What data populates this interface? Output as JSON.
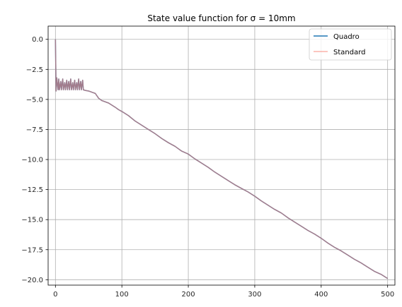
{
  "chart_data": {
    "type": "line",
    "title": "State value function for σ = 10mm",
    "xlabel": "",
    "ylabel": "",
    "xlim": [
      -11,
      511
    ],
    "ylim": [
      -20.45,
      1.1
    ],
    "xticks": [
      0,
      100,
      200,
      300,
      400,
      500
    ],
    "xtick_labels": [
      "0",
      "100",
      "200",
      "300",
      "400",
      "500"
    ],
    "yticks": [
      0.0,
      -2.5,
      -5.0,
      -7.5,
      -10.0,
      -12.5,
      -15.0,
      -17.5,
      -20.0
    ],
    "ytick_labels": [
      "0.0",
      "−2.5",
      "−5.0",
      "−7.5",
      "−10.0",
      "−12.5",
      "−15.0",
      "−17.5",
      "−20.0"
    ],
    "grid": true,
    "legend_position": "top-right",
    "series": [
      {
        "name": "Quadro",
        "color": "#1f77b4",
        "x": [
          0,
          1,
          2,
          4,
          5,
          6,
          8,
          9,
          11,
          12,
          14,
          15,
          17,
          18,
          20,
          21,
          23,
          24,
          26,
          27,
          29,
          30,
          32,
          33,
          35,
          36,
          38,
          39,
          41,
          42,
          45,
          50,
          55,
          60,
          65,
          70,
          80,
          90,
          95,
          100,
          110,
          120,
          130,
          140,
          150,
          160,
          170,
          180,
          190,
          200,
          210,
          220,
          230,
          240,
          250,
          260,
          270,
          280,
          290,
          300,
          310,
          320,
          330,
          340,
          350,
          360,
          370,
          380,
          390,
          400,
          410,
          420,
          430,
          440,
          450,
          460,
          470,
          480,
          490,
          500
        ],
        "y": [
          0.0,
          -4.3,
          -3.2,
          -4.2,
          -3.3,
          -4.2,
          -3.5,
          -4.2,
          -3.3,
          -4.2,
          -3.6,
          -4.2,
          -3.4,
          -4.2,
          -3.5,
          -4.2,
          -3.3,
          -4.2,
          -3.6,
          -4.2,
          -3.4,
          -4.2,
          -3.6,
          -4.2,
          -3.3,
          -4.2,
          -3.5,
          -4.2,
          -3.4,
          -4.2,
          -4.25,
          -4.3,
          -4.4,
          -4.5,
          -4.9,
          -5.1,
          -5.3,
          -5.65,
          -5.85,
          -6.0,
          -6.35,
          -6.8,
          -7.15,
          -7.5,
          -7.85,
          -8.25,
          -8.6,
          -8.9,
          -9.3,
          -9.55,
          -9.95,
          -10.3,
          -10.65,
          -11.05,
          -11.4,
          -11.75,
          -12.1,
          -12.4,
          -12.7,
          -13.05,
          -13.45,
          -13.8,
          -14.15,
          -14.45,
          -14.85,
          -15.2,
          -15.55,
          -15.9,
          -16.2,
          -16.55,
          -16.95,
          -17.3,
          -17.6,
          -17.95,
          -18.3,
          -18.6,
          -18.95,
          -19.3,
          -19.55,
          -19.9
        ]
      },
      {
        "name": "Standard",
        "color": "#fa8072",
        "x": [
          0,
          1,
          2,
          4,
          5,
          6,
          8,
          9,
          11,
          12,
          14,
          15,
          17,
          18,
          20,
          21,
          23,
          24,
          26,
          27,
          29,
          30,
          32,
          33,
          35,
          36,
          38,
          39,
          41,
          42,
          45,
          50,
          55,
          60,
          65,
          70,
          80,
          90,
          95,
          100,
          110,
          120,
          130,
          140,
          150,
          160,
          170,
          180,
          190,
          200,
          210,
          220,
          230,
          240,
          250,
          260,
          270,
          280,
          290,
          300,
          310,
          320,
          330,
          340,
          350,
          360,
          370,
          380,
          390,
          400,
          410,
          420,
          430,
          440,
          450,
          460,
          470,
          480,
          490,
          500
        ],
        "y": [
          0.0,
          -4.3,
          -3.2,
          -4.2,
          -3.3,
          -4.2,
          -3.5,
          -4.2,
          -3.3,
          -4.2,
          -3.6,
          -4.2,
          -3.4,
          -4.2,
          -3.5,
          -4.2,
          -3.3,
          -4.2,
          -3.6,
          -4.2,
          -3.4,
          -4.2,
          -3.6,
          -4.2,
          -3.3,
          -4.2,
          -3.5,
          -4.2,
          -3.4,
          -4.2,
          -4.25,
          -4.3,
          -4.4,
          -4.5,
          -4.9,
          -5.1,
          -5.3,
          -5.65,
          -5.85,
          -6.0,
          -6.35,
          -6.8,
          -7.15,
          -7.5,
          -7.85,
          -8.25,
          -8.6,
          -8.9,
          -9.3,
          -9.55,
          -9.95,
          -10.3,
          -10.65,
          -11.05,
          -11.4,
          -11.75,
          -12.1,
          -12.4,
          -12.7,
          -13.05,
          -13.45,
          -13.8,
          -14.15,
          -14.45,
          -14.85,
          -15.2,
          -15.55,
          -15.9,
          -16.2,
          -16.55,
          -16.95,
          -17.3,
          -17.6,
          -17.95,
          -18.3,
          -18.6,
          -18.95,
          -19.3,
          -19.55,
          -19.9
        ]
      }
    ]
  }
}
